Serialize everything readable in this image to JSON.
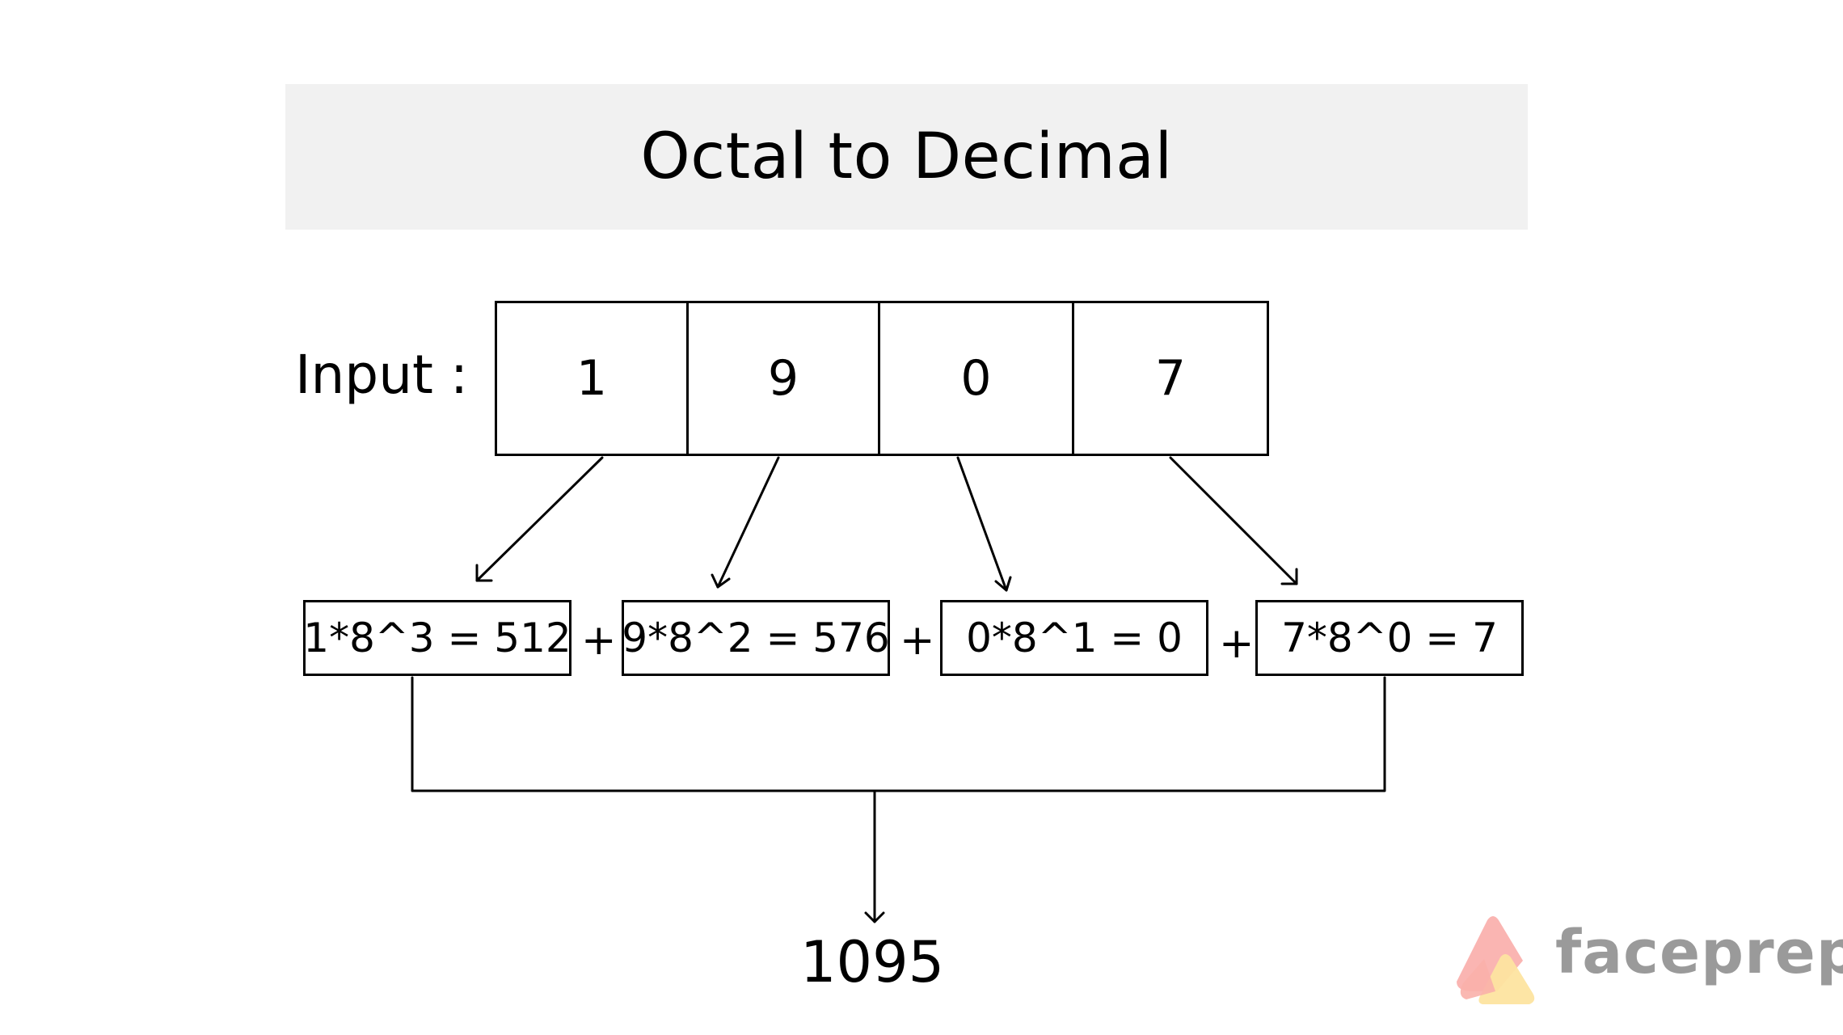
{
  "title": "Octal to Decimal",
  "input_label": "Input :",
  "digits": [
    "1",
    "9",
    "0",
    "7"
  ],
  "terms": [
    "1*8^3 = 512",
    "9*8^2 = 576",
    "0*8^1 = 0",
    "7*8^0 = 7"
  ],
  "operators": [
    "+",
    "+",
    "+"
  ],
  "result": "1095",
  "brand": {
    "name": "faceprep",
    "logo": "faceprep-logo-icon",
    "colors": [
      "#f9a8a4",
      "#fde4a0"
    ]
  },
  "colors": {
    "title_background": "#f1f1f1",
    "stroke": "#000000",
    "brand_text": "#9a9a9a"
  }
}
